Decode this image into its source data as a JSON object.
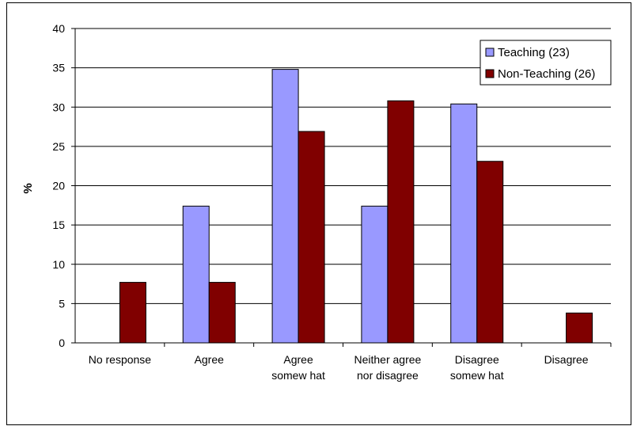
{
  "chart_data": {
    "type": "bar",
    "title": "",
    "xlabel": "",
    "ylabel": "%",
    "ylim": [
      0,
      40
    ],
    "yticks": [
      0,
      5,
      10,
      15,
      20,
      25,
      30,
      35,
      40
    ],
    "grid": true,
    "legend_position": "top-right",
    "categories": [
      [
        "No response"
      ],
      [
        "Agree"
      ],
      [
        "Agree",
        "somew hat"
      ],
      [
        "Neither agree",
        "nor disagree"
      ],
      [
        "Disagree",
        "somew hat"
      ],
      [
        "Disagree"
      ]
    ],
    "series": [
      {
        "name": "Teaching (23)",
        "color": "#9999ff",
        "values": [
          0,
          17.4,
          34.8,
          17.4,
          30.4,
          0
        ]
      },
      {
        "name": "Non-Teaching (26)",
        "color": "#800000",
        "values": [
          7.7,
          7.7,
          26.9,
          30.8,
          23.1,
          3.8
        ]
      }
    ]
  }
}
